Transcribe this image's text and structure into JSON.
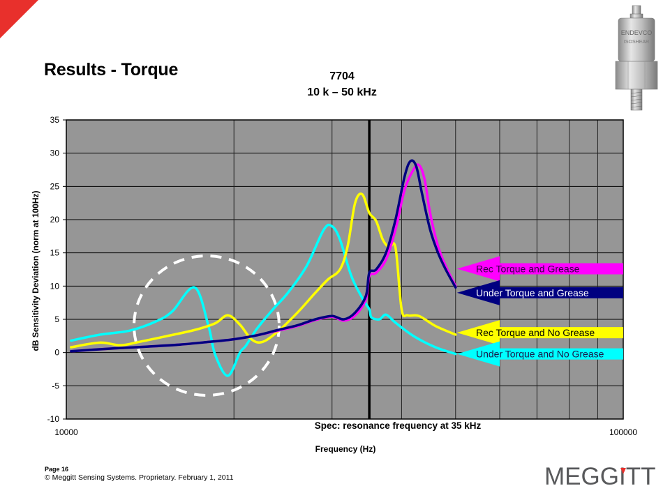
{
  "slide": {
    "title": "Results - Torque",
    "footer_page": "Page 16",
    "footer_copyright": "© Meggitt Sensing Systems. Proprietary. February 1, 2011",
    "logo_text": "MEGGITT",
    "accent_color": "#e8302c",
    "sensor_labels": [
      "ENDEVCO",
      "ISOSHEAR"
    ]
  },
  "chart_data": {
    "type": "line",
    "title": "7704",
    "subtitle": "10 k – 50 kHz",
    "xlabel": "Frequency (Hz)",
    "ylabel": "dB Sensitivity Deviation (norm at 100Hz)",
    "xscale": "log",
    "xlim": [
      10000,
      100000
    ],
    "ylim": [
      -10,
      35
    ],
    "yticks": [
      -10,
      -5,
      0,
      5,
      10,
      15,
      20,
      25,
      30,
      35
    ],
    "xtick_labels": [
      "10000",
      "100000"
    ],
    "grid": true,
    "plot_background": "#969696",
    "annotations": [
      {
        "text": "Spec: resonance frequency at 35 kHz",
        "type": "vertical-line",
        "x": 35000
      },
      {
        "text": "",
        "type": "dashed-circle",
        "center_x": 21000,
        "center_y": 4,
        "note": "highlights Under Torque and No Grease anomaly around 18–24 kHz"
      }
    ],
    "series": [
      {
        "name": "Rec Torque and Grease",
        "color": "#ff00ff",
        "x": [
          10200,
          12000,
          14000,
          16000,
          18000,
          20000,
          22000,
          24000,
          26000,
          28000,
          30000,
          31500,
          33000,
          34500,
          35000,
          36000,
          37500,
          39000,
          40500,
          42000,
          43000,
          44000,
          45000,
          46500,
          48000,
          50000
        ],
        "values": [
          0.2,
          0.6,
          0.9,
          1.2,
          1.6,
          2.0,
          2.6,
          3.3,
          4.0,
          4.9,
          5.4,
          4.8,
          5.6,
          8.0,
          11.5,
          12.0,
          14.0,
          18.5,
          24.5,
          27.5,
          28.2,
          26.0,
          21.0,
          16.0,
          13.0,
          10.0
        ]
      },
      {
        "name": "Under Torque and Grease",
        "color": "#000080",
        "x": [
          10200,
          12000,
          14000,
          16000,
          18000,
          20000,
          22000,
          24000,
          26000,
          28000,
          30000,
          31500,
          33000,
          34500,
          35000,
          36000,
          37500,
          39000,
          40500,
          41500,
          42500,
          43500,
          45000,
          46500,
          48000,
          50000
        ],
        "values": [
          0.2,
          0.6,
          0.9,
          1.2,
          1.6,
          2.0,
          2.6,
          3.4,
          4.1,
          5.0,
          5.5,
          5.0,
          6.0,
          8.5,
          12.0,
          12.5,
          15.0,
          20.0,
          26.5,
          28.8,
          28.0,
          24.0,
          18.5,
          15.0,
          12.5,
          9.8
        ]
      },
      {
        "name": "Rec Torque and No Grease",
        "color": "#ffff00",
        "x": [
          10200,
          11500,
          12500,
          13500,
          15000,
          17000,
          18500,
          19500,
          20500,
          21500,
          22500,
          24000,
          26000,
          28000,
          29500,
          31000,
          32000,
          33000,
          34000,
          35000,
          36000,
          37000,
          38000,
          39000,
          40000,
          41000,
          43000,
          46000,
          50000
        ],
        "values": [
          0.8,
          1.5,
          1.1,
          1.6,
          2.4,
          3.4,
          4.4,
          5.6,
          4.2,
          2.0,
          1.6,
          3.2,
          6.0,
          9.0,
          11.0,
          12.5,
          16.0,
          22.5,
          23.8,
          21.0,
          19.8,
          17.0,
          15.8,
          15.8,
          6.5,
          5.6,
          5.5,
          4.0,
          2.7
        ]
      },
      {
        "name": "Under Torque and No Grease",
        "color": "#00ffff",
        "x": [
          10200,
          11500,
          13000,
          14500,
          15500,
          17000,
          18000,
          18500,
          19500,
          20500,
          21000,
          22000,
          23500,
          25000,
          27000,
          29000,
          30000,
          31000,
          32500,
          34000,
          35000,
          35300,
          36500,
          37500,
          39000,
          42000,
          46000,
          50000
        ],
        "values": [
          1.8,
          2.7,
          3.3,
          4.7,
          6.2,
          9.8,
          4.0,
          -0.3,
          -3.5,
          0.0,
          1.0,
          3.6,
          6.5,
          9.0,
          13.0,
          18.5,
          19.0,
          17.0,
          11.5,
          8.2,
          6.5,
          5.3,
          5.0,
          5.7,
          4.5,
          2.5,
          0.8,
          -0.2
        ]
      }
    ],
    "legend": {
      "position": "right, as colored arrow callouts pointing to line ends",
      "entries": [
        {
          "label": "Rec Torque and Grease",
          "bg": "#ff00ff",
          "text_color": "#330044",
          "y_value": 12.6
        },
        {
          "label": "Under Torque and Grease",
          "bg": "#000080",
          "text_color": "#ffffff",
          "y_value": 9.0
        },
        {
          "label": "Rec Torque and No Grease",
          "bg": "#ffff00",
          "text_color": "#000000",
          "y_value": 3.0
        },
        {
          "label": "Under Torque and No Grease",
          "bg": "#00ffff",
          "text_color": "#1a1a4a",
          "y_value": -0.2
        }
      ]
    }
  }
}
